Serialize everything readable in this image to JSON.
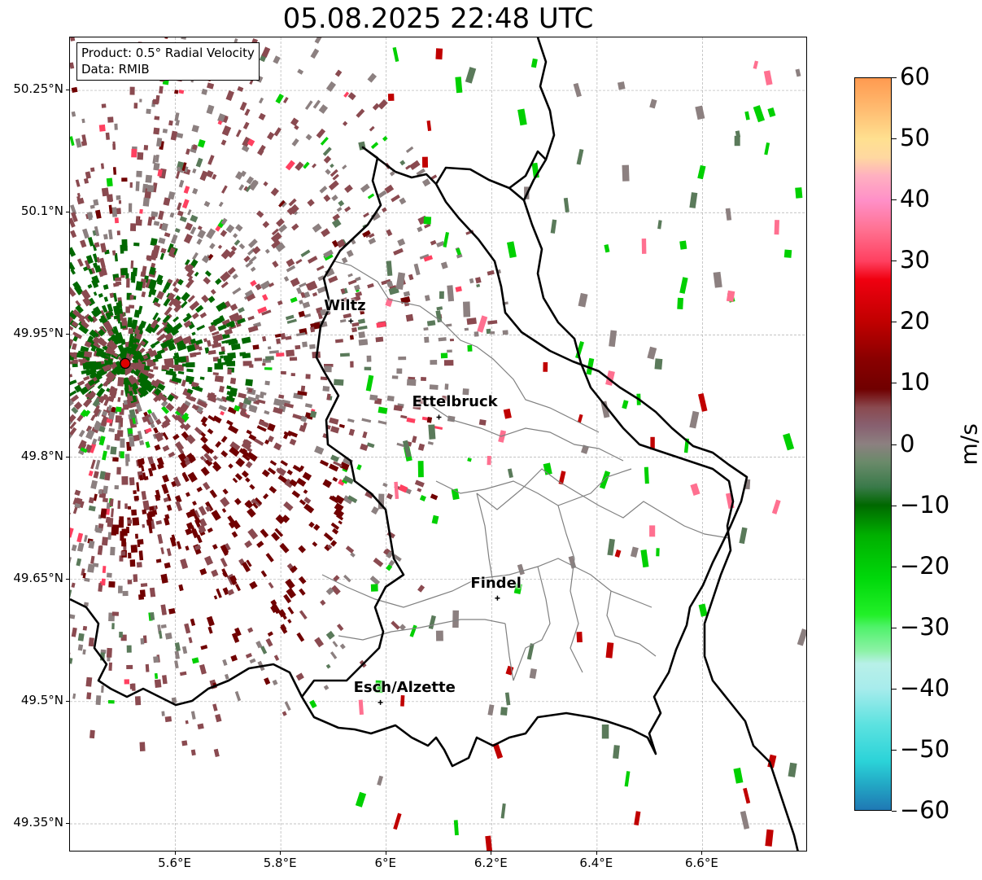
{
  "title": "05.08.2025 22:48 UTC",
  "info_box": {
    "product": "Product: 0.5° Radial Velocity",
    "data": "Data: RMIB"
  },
  "map": {
    "lon_range": [
      5.4,
      6.8
    ],
    "lat_range": [
      49.315,
      50.315
    ],
    "lat_ticks": [
      {
        "value": 50.25,
        "label": "50.25°N"
      },
      {
        "value": 50.1,
        "label": "50.1°N"
      },
      {
        "value": 49.95,
        "label": "49.95°N"
      },
      {
        "value": 49.8,
        "label": "49.8°N"
      },
      {
        "value": 49.65,
        "label": "49.65°N"
      },
      {
        "value": 49.5,
        "label": "49.5°N"
      },
      {
        "value": 49.35,
        "label": "49.35°N"
      }
    ],
    "lon_ticks": [
      {
        "value": 5.6,
        "label": "5.6°E"
      },
      {
        "value": 5.8,
        "label": "5.8°E"
      },
      {
        "value": 6.0,
        "label": "6°E"
      },
      {
        "value": 6.2,
        "label": "6.2°E"
      },
      {
        "value": 6.4,
        "label": "6.4°E"
      },
      {
        "value": 6.6,
        "label": "6.6°E"
      }
    ],
    "radar_site": {
      "lon": 5.505,
      "lat": 49.915,
      "color": "#e00000"
    },
    "cities": [
      {
        "name": "Wiltz",
        "lon": 5.933,
        "lat": 49.967
      },
      {
        "name": "Ettelbruck",
        "lon": 6.1,
        "lat": 49.849
      },
      {
        "name": "Findel",
        "lon": 6.211,
        "lat": 49.627
      },
      {
        "name": "Esch/Alzette",
        "lon": 5.989,
        "lat": 49.499
      }
    ]
  },
  "colorbar": {
    "label": "m/s",
    "range": [
      -60,
      60
    ],
    "ticks": [
      {
        "value": 60,
        "label": "60"
      },
      {
        "value": 50,
        "label": "50"
      },
      {
        "value": 40,
        "label": "40"
      },
      {
        "value": 30,
        "label": "30"
      },
      {
        "value": 20,
        "label": "20"
      },
      {
        "value": 10,
        "label": "10"
      },
      {
        "value": 0,
        "label": "0"
      },
      {
        "value": -10,
        "label": "−10"
      },
      {
        "value": -20,
        "label": "−20"
      },
      {
        "value": -30,
        "label": "−30"
      },
      {
        "value": -40,
        "label": "−40"
      },
      {
        "value": -50,
        "label": "−50"
      },
      {
        "value": -60,
        "label": "−60"
      }
    ],
    "stops": [
      {
        "v": -60,
        "color": "#1f78b4"
      },
      {
        "v": -56,
        "color": "#22a6c4"
      },
      {
        "v": -52,
        "color": "#2bd3d8"
      },
      {
        "v": -46,
        "color": "#5ce2e0"
      },
      {
        "v": -40,
        "color": "#a8ecec"
      },
      {
        "v": -36,
        "color": "#b8f0e8"
      },
      {
        "v": -34,
        "color": "#8ef2a8"
      },
      {
        "v": -30,
        "color": "#4ff26a"
      },
      {
        "v": -28,
        "color": "#22f028"
      },
      {
        "v": -22,
        "color": "#00d80a"
      },
      {
        "v": -15,
        "color": "#00b000"
      },
      {
        "v": -10,
        "color": "#006800"
      },
      {
        "v": -7,
        "color": "#3a7a4a"
      },
      {
        "v": -3,
        "color": "#6a8a6a"
      },
      {
        "v": 0,
        "color": "#8c8080"
      },
      {
        "v": 3,
        "color": "#886070"
      },
      {
        "v": 6,
        "color": "#8a4a50"
      },
      {
        "v": 9,
        "color": "#700000"
      },
      {
        "v": 14,
        "color": "#8a0000"
      },
      {
        "v": 20,
        "color": "#c00000"
      },
      {
        "v": 27,
        "color": "#f00010"
      },
      {
        "v": 30,
        "color": "#ff4060"
      },
      {
        "v": 35,
        "color": "#ff7090"
      },
      {
        "v": 40,
        "color": "#ff90c8"
      },
      {
        "v": 44,
        "color": "#ffb0c0"
      },
      {
        "v": 47,
        "color": "#ffd8a0"
      },
      {
        "v": 50,
        "color": "#ffe090"
      },
      {
        "v": 55,
        "color": "#ffbb70"
      },
      {
        "v": 60,
        "color": "#ff9a50"
      }
    ]
  },
  "colors": {
    "country_border": "#000000",
    "canton_border": "#808080",
    "grid": "#b0b0b0",
    "outbound_dark": "#700000",
    "outbound_mid": "#8a4a50",
    "zero": "#8c8080",
    "inbound_dark": "#006800",
    "inbound_mid": "#5a7a5a",
    "inbound_bright": "#00d000"
  }
}
